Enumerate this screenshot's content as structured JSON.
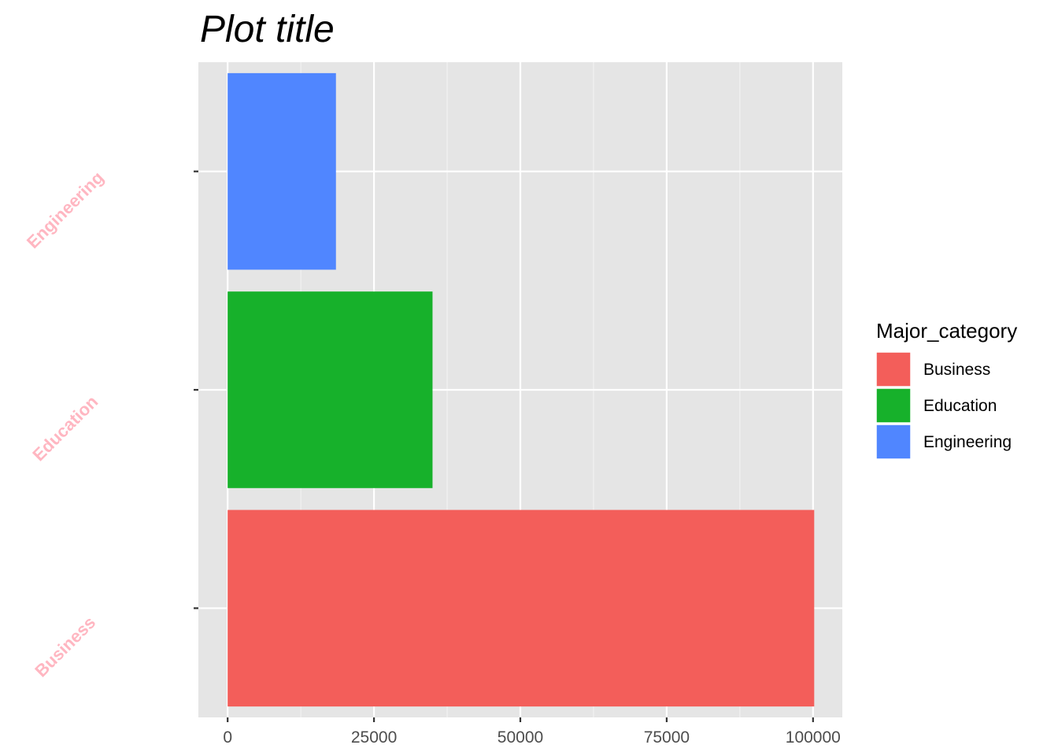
{
  "chart_data": {
    "type": "bar",
    "orientation": "horizontal",
    "title": "Plot title",
    "xlabel": "",
    "ylabel": "",
    "categories": [
      "Business",
      "Education",
      "Engineering"
    ],
    "values": [
      100200,
      35000,
      18500
    ],
    "colors": [
      "#F35E5A",
      "#17B12B",
      "#5086FF"
    ],
    "xlim": [
      -5000,
      105000
    ],
    "x_ticks": [
      "0",
      "25000",
      "50000",
      "75000",
      "100000"
    ],
    "x_tick_values": [
      0,
      25000,
      50000,
      75000,
      100000
    ],
    "category_label_color": "#FFB6C1",
    "grid": true,
    "panel_background": "#E5E5E5",
    "legend": {
      "title": "Major_category",
      "placement": "right",
      "entries": [
        "Business",
        "Education",
        "Engineering"
      ]
    }
  }
}
